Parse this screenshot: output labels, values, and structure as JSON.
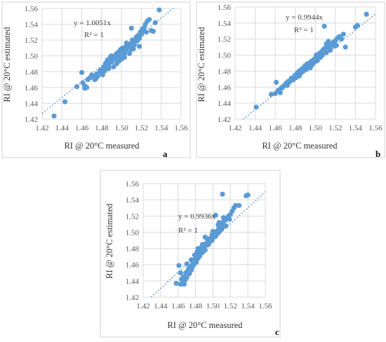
{
  "chart_data": [
    {
      "type": "scatter",
      "panel": "a",
      "xlabel": "RI @ 20°C measured",
      "ylabel": "RI @ 20°C estimated",
      "xlim": [
        1.42,
        1.56
      ],
      "ylim": [
        1.42,
        1.56
      ],
      "xticks": [
        "1.42",
        "1.44",
        "1.46",
        "1.48",
        "1.50",
        "1.52",
        "1.54",
        "1.56"
      ],
      "yticks": [
        "1.42",
        "1.44",
        "1.46",
        "1.48",
        "1.50",
        "1.52",
        "1.54",
        "1.56"
      ],
      "equation": "y = 1.0051x",
      "r2": "R² = 1",
      "slope": 1.0051,
      "grid": true,
      "x": [
        1.432,
        1.443,
        1.455,
        1.46,
        1.461,
        1.463,
        1.465,
        1.466,
        1.468,
        1.47,
        1.472,
        1.473,
        1.475,
        1.476,
        1.478,
        1.479,
        1.48,
        1.481,
        1.482,
        1.483,
        1.484,
        1.485,
        1.486,
        1.487,
        1.488,
        1.489,
        1.49,
        1.491,
        1.492,
        1.493,
        1.494,
        1.495,
        1.496,
        1.497,
        1.498,
        1.499,
        1.5,
        1.501,
        1.502,
        1.503,
        1.504,
        1.505,
        1.506,
        1.507,
        1.508,
        1.509,
        1.51,
        1.511,
        1.512,
        1.513,
        1.514,
        1.515,
        1.516,
        1.517,
        1.518,
        1.519,
        1.52,
        1.521,
        1.522,
        1.523,
        1.524,
        1.526,
        1.528,
        1.53,
        1.532,
        1.534,
        1.538,
        1.486,
        1.49,
        1.495,
        1.5,
        1.505,
        1.51,
        1.484,
        1.492,
        1.498,
        1.502,
        1.508,
        1.512,
        1.514,
        1.481,
        1.489,
        1.497,
        1.507,
        1.518,
        1.463,
        1.474,
        1.487,
        1.496,
        1.503,
        1.515,
        1.525
      ],
      "y": [
        1.424,
        1.442,
        1.461,
        1.479,
        1.466,
        1.462,
        1.46,
        1.47,
        1.472,
        1.476,
        1.474,
        1.47,
        1.477,
        1.474,
        1.48,
        1.482,
        1.478,
        1.483,
        1.486,
        1.481,
        1.489,
        1.485,
        1.49,
        1.487,
        1.494,
        1.499,
        1.492,
        1.495,
        1.497,
        1.5,
        1.496,
        1.503,
        1.499,
        1.505,
        1.497,
        1.508,
        1.503,
        1.51,
        1.506,
        1.503,
        1.511,
        1.508,
        1.513,
        1.51,
        1.515,
        1.512,
        1.508,
        1.52,
        1.517,
        1.514,
        1.521,
        1.524,
        1.519,
        1.526,
        1.522,
        1.53,
        1.527,
        1.534,
        1.531,
        1.536,
        1.54,
        1.544,
        1.546,
        1.532,
        1.531,
        1.542,
        1.558,
        1.495,
        1.5,
        1.49,
        1.496,
        1.516,
        1.535,
        1.491,
        1.486,
        1.494,
        1.5,
        1.503,
        1.509,
        1.518,
        1.476,
        1.493,
        1.501,
        1.515,
        1.512,
        1.459,
        1.471,
        1.484,
        1.492,
        1.498,
        1.519,
        1.53
      ]
    },
    {
      "type": "scatter",
      "panel": "b",
      "xlabel": "RI @ 20°C measured",
      "ylabel": "RI @ 20°C estimated",
      "xlim": [
        1.42,
        1.56
      ],
      "ylim": [
        1.42,
        1.56
      ],
      "xticks": [
        "1.42",
        "1.44",
        "1.46",
        "1.48",
        "1.50",
        "1.52",
        "1.54",
        "1.56"
      ],
      "yticks": [
        "1.42",
        "1.44",
        "1.46",
        "1.48",
        "1.50",
        "1.52",
        "1.54",
        "1.56"
      ],
      "equation": "y = 0.9944x",
      "r2": "R² = 1",
      "slope": 0.9944,
      "grid": true,
      "x": [
        1.441,
        1.456,
        1.461,
        1.463,
        1.465,
        1.466,
        1.468,
        1.47,
        1.471,
        1.472,
        1.474,
        1.475,
        1.476,
        1.478,
        1.479,
        1.48,
        1.481,
        1.482,
        1.483,
        1.484,
        1.485,
        1.486,
        1.487,
        1.488,
        1.489,
        1.49,
        1.491,
        1.492,
        1.493,
        1.494,
        1.495,
        1.496,
        1.497,
        1.498,
        1.499,
        1.5,
        1.501,
        1.502,
        1.503,
        1.504,
        1.505,
        1.506,
        1.507,
        1.508,
        1.509,
        1.51,
        1.511,
        1.512,
        1.514,
        1.516,
        1.518,
        1.52,
        1.522,
        1.524,
        1.526,
        1.528,
        1.53,
        1.54,
        1.542,
        1.551,
        1.46,
        1.467,
        1.473,
        1.477,
        1.486,
        1.491,
        1.496,
        1.502,
        1.507,
        1.511,
        1.513,
        1.519,
        1.509,
        1.484,
        1.489,
        1.494,
        1.5,
        1.505,
        1.515,
        1.521
      ],
      "y": [
        1.435,
        1.451,
        1.466,
        1.456,
        1.453,
        1.459,
        1.461,
        1.463,
        1.465,
        1.462,
        1.466,
        1.468,
        1.471,
        1.469,
        1.473,
        1.475,
        1.472,
        1.477,
        1.479,
        1.476,
        1.481,
        1.478,
        1.483,
        1.48,
        1.485,
        1.487,
        1.482,
        1.489,
        1.486,
        1.49,
        1.484,
        1.492,
        1.488,
        1.494,
        1.491,
        1.496,
        1.5,
        1.493,
        1.498,
        1.502,
        1.497,
        1.504,
        1.5,
        1.507,
        1.505,
        1.509,
        1.503,
        1.511,
        1.508,
        1.513,
        1.516,
        1.518,
        1.521,
        1.523,
        1.52,
        1.526,
        1.51,
        1.535,
        1.537,
        1.551,
        1.452,
        1.459,
        1.467,
        1.471,
        1.479,
        1.484,
        1.489,
        1.496,
        1.502,
        1.514,
        1.517,
        1.511,
        1.536,
        1.474,
        1.483,
        1.487,
        1.492,
        1.499,
        1.506,
        1.512
      ]
    },
    {
      "type": "scatter",
      "panel": "c",
      "xlabel": "RI @ 20°C measured",
      "ylabel": "RI @ 20°C estimated",
      "xlim": [
        1.42,
        1.56
      ],
      "ylim": [
        1.42,
        1.56
      ],
      "xticks": [
        "1.42",
        "1.44",
        "1.46",
        "1.48",
        "1.50",
        "1.52",
        "1.54",
        "1.56"
      ],
      "yticks": [
        "1.42",
        "1.44",
        "1.46",
        "1.48",
        "1.50",
        "1.52",
        "1.54",
        "1.56"
      ],
      "equation": "y = 0.9936x",
      "r2": "R² = 1",
      "slope": 0.9936,
      "grid": true,
      "x": [
        1.458,
        1.461,
        1.463,
        1.464,
        1.466,
        1.467,
        1.468,
        1.469,
        1.47,
        1.471,
        1.472,
        1.473,
        1.474,
        1.475,
        1.476,
        1.477,
        1.478,
        1.479,
        1.48,
        1.481,
        1.482,
        1.483,
        1.484,
        1.485,
        1.486,
        1.487,
        1.488,
        1.489,
        1.49,
        1.491,
        1.492,
        1.493,
        1.494,
        1.495,
        1.496,
        1.497,
        1.498,
        1.499,
        1.5,
        1.501,
        1.502,
        1.503,
        1.504,
        1.505,
        1.506,
        1.507,
        1.508,
        1.509,
        1.51,
        1.511,
        1.512,
        1.514,
        1.516,
        1.518,
        1.52,
        1.522,
        1.524,
        1.526,
        1.53,
        1.538,
        1.54,
        1.463,
        1.466,
        1.47,
        1.475,
        1.479,
        1.483,
        1.487,
        1.491,
        1.495,
        1.499,
        1.503,
        1.507,
        1.511,
        1.515,
        1.519,
        1.482,
        1.488,
        1.494,
        1.5,
        1.506,
        1.512
      ],
      "y": [
        1.437,
        1.459,
        1.436,
        1.442,
        1.445,
        1.436,
        1.441,
        1.45,
        1.444,
        1.452,
        1.455,
        1.449,
        1.458,
        1.453,
        1.456,
        1.462,
        1.46,
        1.465,
        1.467,
        1.463,
        1.47,
        1.468,
        1.474,
        1.471,
        1.477,
        1.479,
        1.475,
        1.481,
        1.483,
        1.478,
        1.486,
        1.484,
        1.488,
        1.485,
        1.491,
        1.489,
        1.493,
        1.49,
        1.496,
        1.494,
        1.498,
        1.495,
        1.5,
        1.502,
        1.499,
        1.505,
        1.508,
        1.503,
        1.51,
        1.506,
        1.513,
        1.515,
        1.518,
        1.52,
        1.522,
        1.526,
        1.53,
        1.533,
        1.533,
        1.545,
        1.546,
        1.45,
        1.44,
        1.461,
        1.466,
        1.472,
        1.48,
        1.482,
        1.494,
        1.492,
        1.497,
        1.521,
        1.512,
        1.547,
        1.508,
        1.516,
        1.476,
        1.485,
        1.49,
        1.501,
        1.509,
        1.518
      ]
    }
  ],
  "panel_letters": [
    "a",
    "b",
    "c"
  ]
}
